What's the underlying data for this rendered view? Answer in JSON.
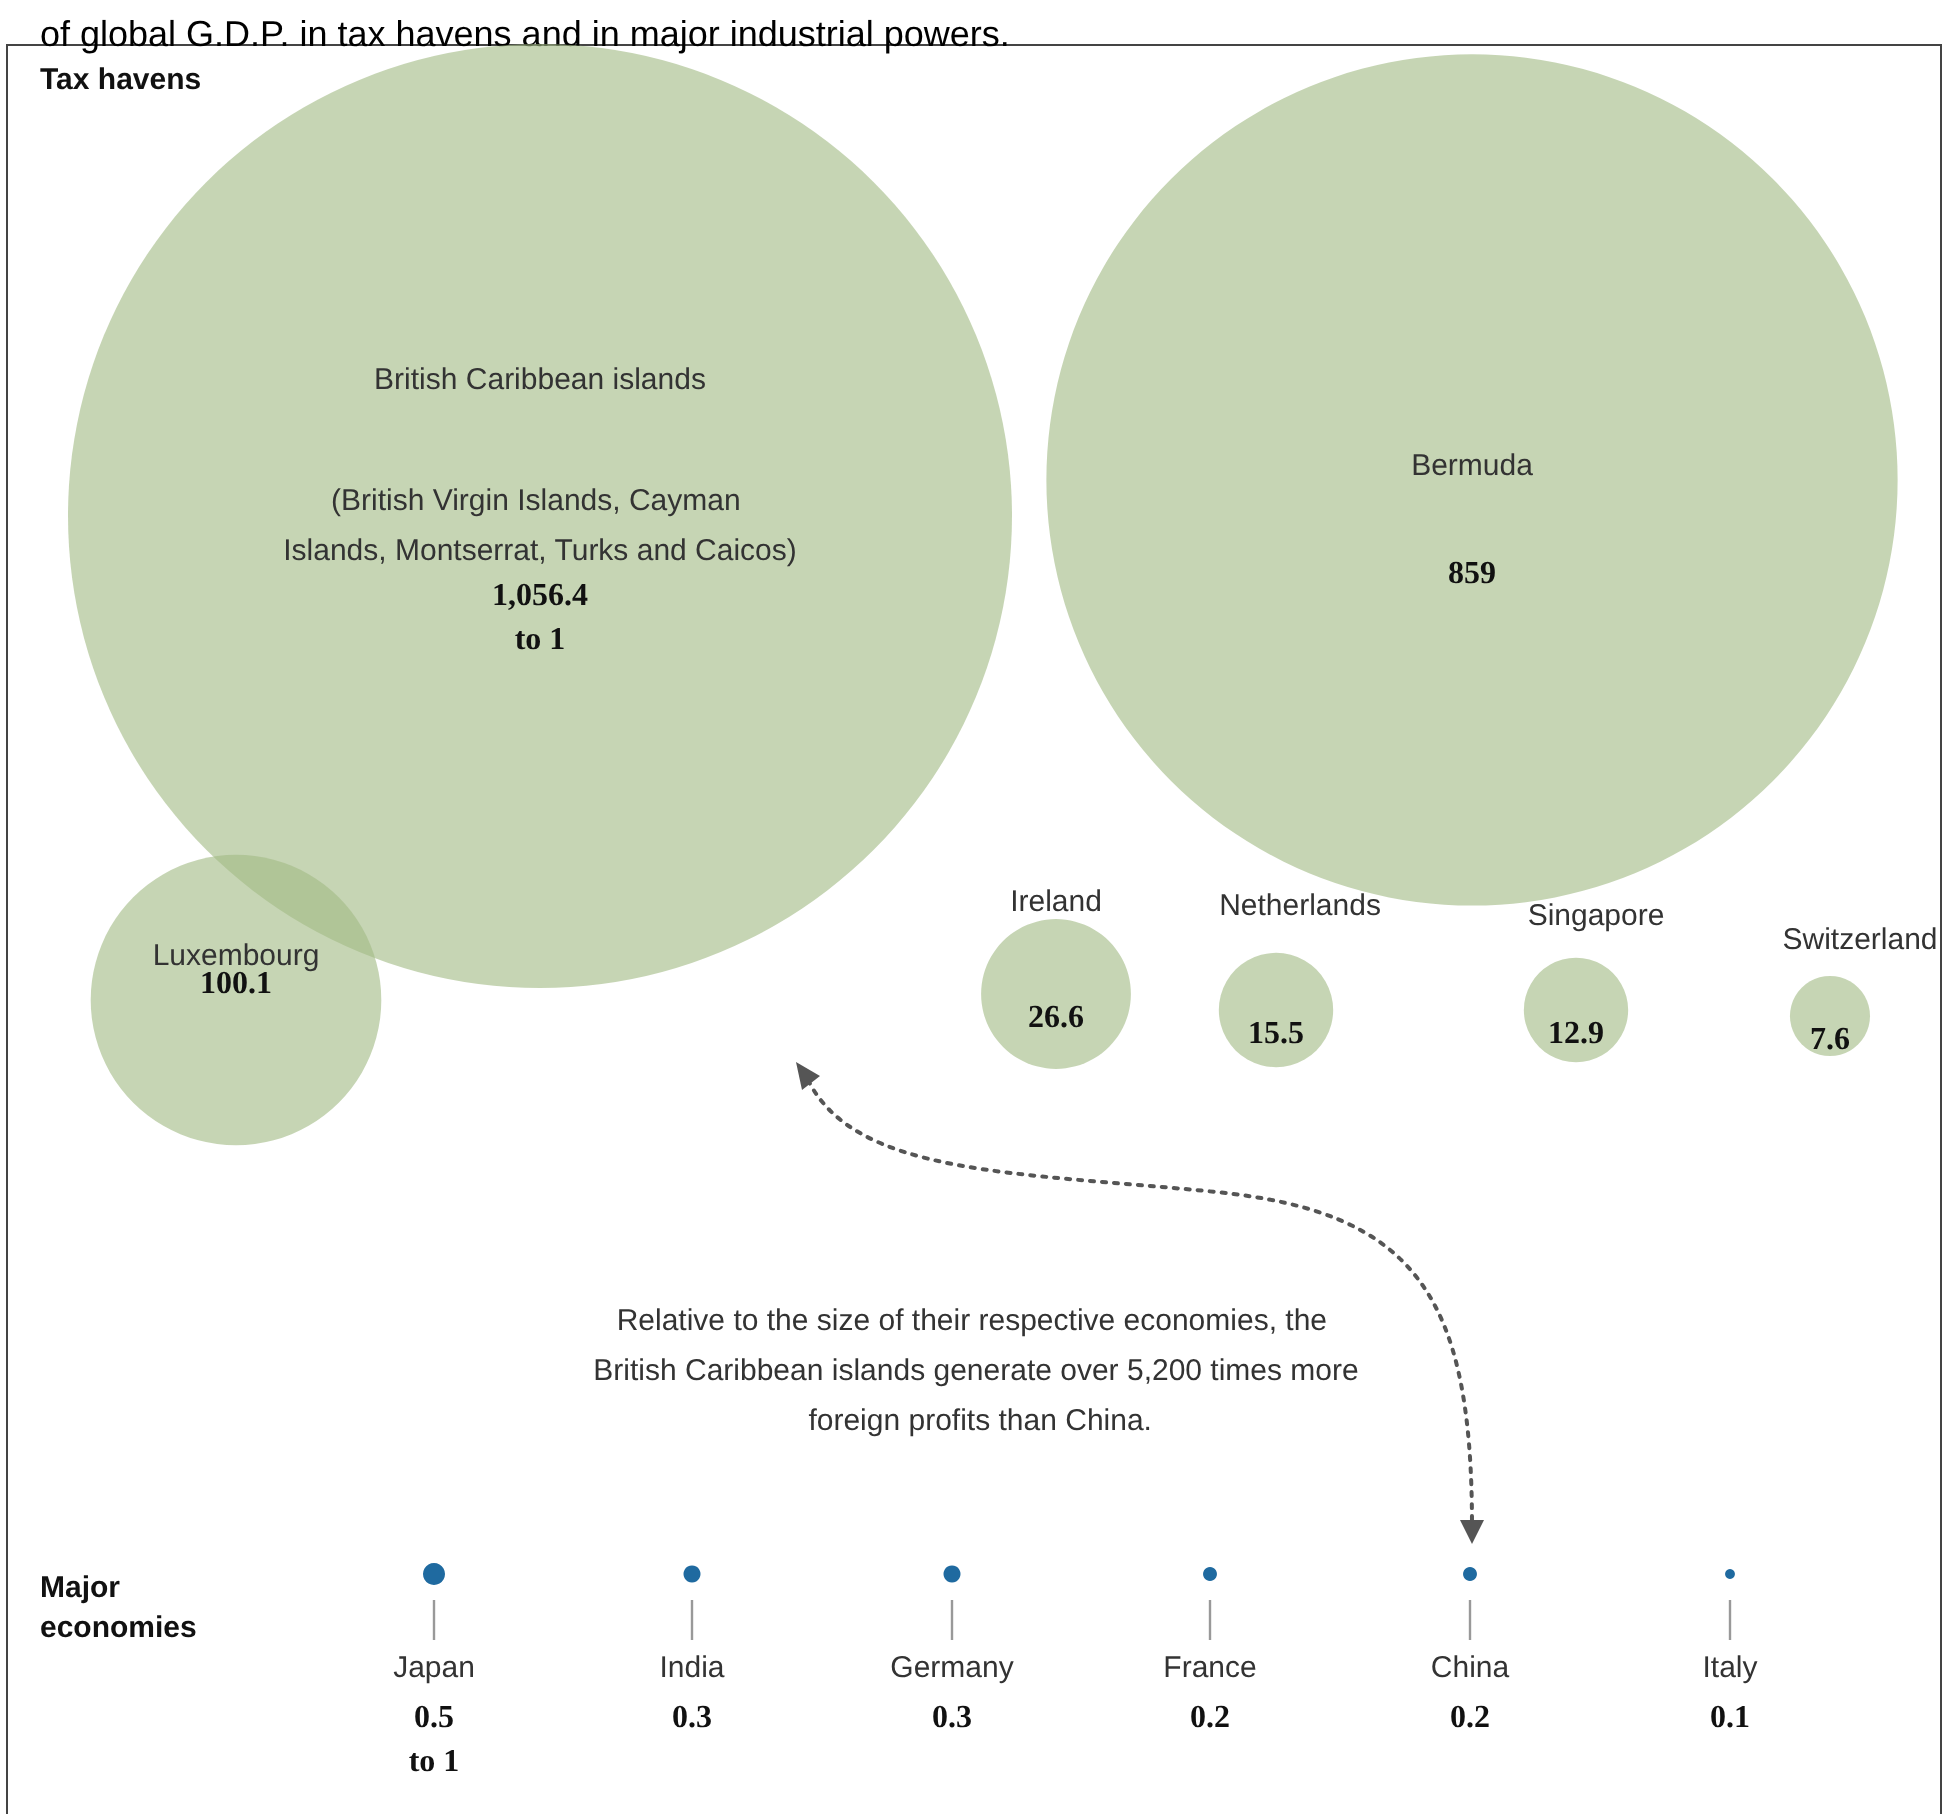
{
  "chart_data": [
    {
      "type": "other",
      "title": "of global G.D.P. in tax havens and in major industrial powers.",
      "subtitle": "Tax havens",
      "categories": [
        "British Caribbean islands",
        "Bermuda",
        "Luxembourg",
        "Ireland",
        "Netherlands",
        "Singapore",
        "Switzerland"
      ],
      "values": [
        1056.4,
        859,
        100.1,
        26.6,
        15.5,
        12.9,
        7.6
      ],
      "value_labels": [
        "1,056.4\nto 1",
        "859",
        "100.1",
        "26.6",
        "15.5",
        "12.9",
        "7.6"
      ],
      "color": "#a3bc86",
      "annotations": [
        "(British Virgin Islands, Cayman Islands, Montserrat, Turks and Caicos)",
        "Relative to the size of their respective economies, the British Caribbean islands generate over 5,200 times more foreign profits than China."
      ]
    },
    {
      "type": "other",
      "subtitle": "Major economies",
      "categories": [
        "Japan",
        "India",
        "Germany",
        "France",
        "China",
        "Italy"
      ],
      "values": [
        0.5,
        0.3,
        0.3,
        0.2,
        0.2,
        0.1
      ],
      "value_labels": [
        "0.5\nto 1",
        "0.3",
        "0.3",
        "0.2",
        "0.2",
        "0.1"
      ],
      "color": "#1f6aa0"
    }
  ]
}
